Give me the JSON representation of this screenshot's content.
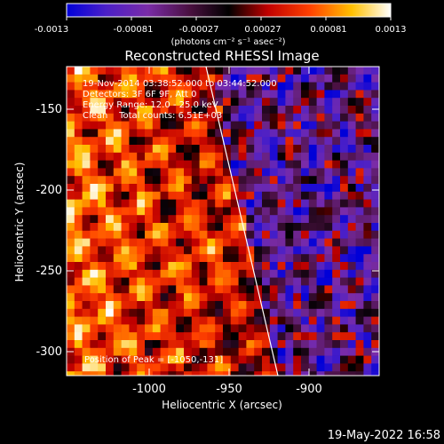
{
  "colorbar": {
    "ticks": [
      "-0.0013",
      "-0.00081",
      "-0.00027",
      "0.00027",
      "0.00081",
      "0.0013"
    ],
    "units": "(photons cm⁻² s⁻¹ asec⁻²)"
  },
  "title": "Reconstructed RHESSI Image",
  "info": {
    "time": "19-Nov-2014 03:38:52.000 to 03:44:52.000",
    "detectors": "Detectors: 3F 6F 9F, Att 0",
    "energy": "Energy Range: 12.0 - 25.0 keV",
    "clean": "Clean    Total counts: 6.51E+03"
  },
  "peak": "Position of Peak = [-1050,-131]",
  "axes": {
    "xlabel": "Heliocentric X (arcsec)",
    "ylabel": "Heliocentric Y (arcsec)",
    "xticks": [
      "-1000",
      "-950",
      "-900"
    ],
    "yticks": [
      "-150",
      "-200",
      "-250",
      "-300"
    ]
  },
  "footer_date": "19-May-2022 16:58"
}
